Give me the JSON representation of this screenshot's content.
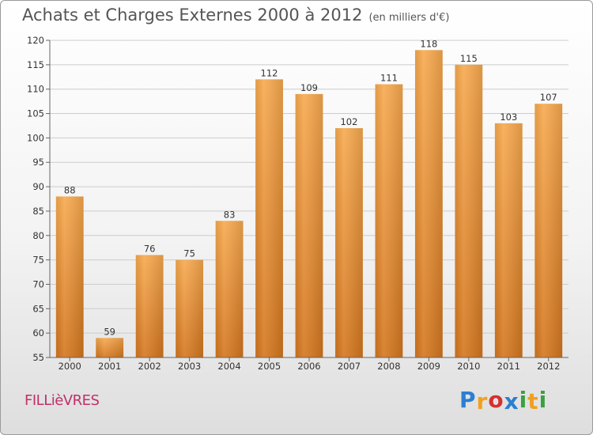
{
  "title": "Achats et Charges Externes 2000 à 2012",
  "subtitle": "(en milliers d'€)",
  "commune": "FILLièVRES",
  "logo": {
    "letters": [
      "P",
      "r",
      "o",
      "x",
      "i",
      "t",
      "i"
    ],
    "colors": [
      "#2b7fd1",
      "#f0a020",
      "#d63030",
      "#2b7fd1",
      "#3aa040",
      "#f0a020",
      "#3aa040"
    ]
  },
  "colors": {
    "bar_light": "#f7a94e",
    "bar_dark": "#d4761e",
    "grid": "#cccccc",
    "text": "#555555"
  },
  "chart_data": {
    "type": "bar",
    "title": "Achats et Charges Externes 2000 à 2012",
    "subtitle": "(en milliers d'€)",
    "categories": [
      "2000",
      "2001",
      "2002",
      "2003",
      "2004",
      "2005",
      "2006",
      "2007",
      "2008",
      "2009",
      "2010",
      "2011",
      "2012"
    ],
    "values": [
      88,
      59,
      76,
      75,
      83,
      112,
      109,
      102,
      111,
      118,
      115,
      103,
      107
    ],
    "ylim": [
      55,
      120
    ],
    "yticks": [
      55,
      60,
      65,
      70,
      75,
      80,
      85,
      90,
      95,
      100,
      105,
      110,
      115,
      120
    ],
    "grid": true,
    "legend": "none"
  }
}
